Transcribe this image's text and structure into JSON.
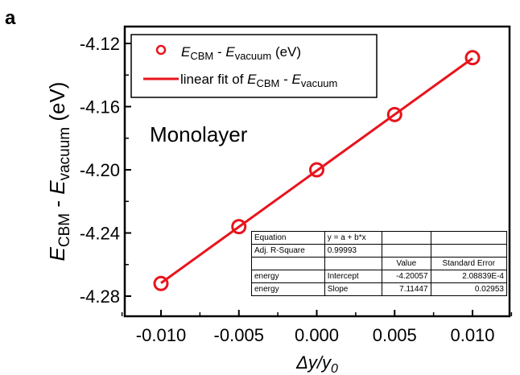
{
  "panel_label": "a",
  "annotation": "Monolayer",
  "legend": {
    "entries": [
      {
        "marker": "circle",
        "text_main": "E",
        "text_sub1": "CBM",
        "text_mid": " - ",
        "text_main2": "E",
        "text_sub2": "vacuum",
        "text_tail": " (eV)"
      },
      {
        "marker": "line",
        "text_pre": "linear fit of ",
        "text_main": "E",
        "text_sub1": "CBM",
        "text_mid": " - ",
        "text_main2": "E",
        "text_sub2": "vacuum",
        "text_tail": ""
      }
    ]
  },
  "axes": {
    "ylabel": {
      "main": "E",
      "sub1": "CBM",
      "mid": " - ",
      "main2": "E",
      "sub2": "vacuum",
      "tail": " (eV)"
    },
    "xlabel": {
      "main": "Δy/y",
      "sub": "0"
    }
  },
  "fit_table": {
    "rows": [
      [
        "Equation",
        "y = a + b*x",
        "",
        ""
      ],
      [
        "Adj. R-Square",
        "0.99993",
        "",
        ""
      ],
      [
        "",
        "",
        "Value",
        "Standard Error"
      ],
      [
        "energy",
        "Intercept",
        "-4.20057",
        "2.08839E-4"
      ],
      [
        "energy",
        "Slope",
        "7.11447",
        "0.02953"
      ]
    ]
  },
  "colors": {
    "series": "#e8141c",
    "axis": "#000000"
  },
  "chart_data": {
    "type": "scatter",
    "x": [
      -0.01,
      -0.005,
      0.0,
      0.005,
      0.01
    ],
    "series": [
      {
        "name": "E_CBM - E_vacuum (eV)",
        "values": [
          -4.272,
          -4.236,
          -4.2,
          -4.165,
          -4.129
        ]
      }
    ],
    "fit": {
      "intercept": -4.20057,
      "slope": 7.11447
    },
    "xlim": [
      -0.0125,
      0.0125
    ],
    "ylim": [
      -4.292,
      -4.11
    ],
    "xticks": [
      "-0.010",
      "-0.005",
      "0.000",
      "0.005",
      "0.010"
    ],
    "xtick_values": [
      -0.01,
      -0.005,
      0.0,
      0.005,
      0.01
    ],
    "yticks": [
      "-4.12",
      "-4.16",
      "-4.20",
      "-4.24",
      "-4.28"
    ],
    "ytick_values": [
      -4.12,
      -4.16,
      -4.2,
      -4.24,
      -4.28
    ],
    "grid": false,
    "legend_position": "top-left"
  }
}
